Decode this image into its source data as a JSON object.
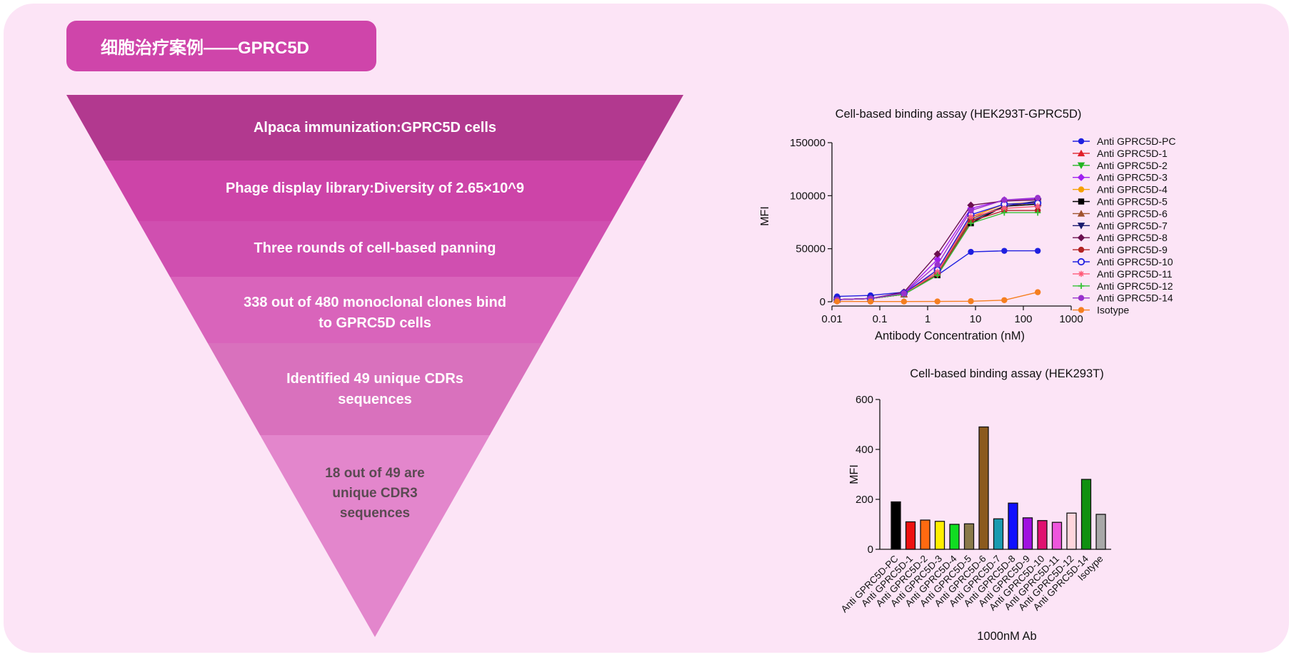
{
  "header": {
    "title": "细胞治疗案例——GPRC5D"
  },
  "colors": {
    "page_bg": "#fce4f6",
    "accent": "#cf45aa",
    "funnel": [
      "#b2398f",
      "#cd44a8",
      "#d04fb0",
      "#d964bb",
      "#d971bd",
      "#e386cc"
    ]
  },
  "funnel": {
    "levels": [
      {
        "lines": [
          "Alpaca immunization:GPRC5D cells"
        ]
      },
      {
        "lines": [
          "Phage display library:Diversity of 2.65×10^9"
        ]
      },
      {
        "lines": [
          "Three rounds of cell-based panning"
        ]
      },
      {
        "lines": [
          "338 out of 480 monoclonal clones bind",
          "to GPRC5D cells"
        ]
      },
      {
        "lines": [
          "Identified 49 unique CDRs",
          "sequences"
        ]
      },
      {
        "lines": [
          "18 out of 49 are",
          "unique CDR3",
          "sequences"
        ]
      }
    ]
  },
  "chart_data": [
    {
      "type": "line",
      "title": "Cell-based binding assay (HEK293T-GPRC5D)",
      "xlabel": "Antibody Concentration (nM)",
      "ylabel": "MFI",
      "x_scale": "log",
      "xlim": [
        0.01,
        1000
      ],
      "ylim": [
        0,
        150000
      ],
      "x_ticks": [
        "0.01",
        "0.1",
        "1",
        "10",
        "100",
        "1000"
      ],
      "y_ticks": [
        "0",
        "50000",
        "100000",
        "150000"
      ],
      "legend_position": "right",
      "x": [
        0.0128,
        0.064,
        0.32,
        1.6,
        8,
        40,
        200
      ],
      "series": [
        {
          "name": "Anti GPRC5D-PC",
          "color": "#1f1fe0",
          "marker": "circle",
          "values": [
            5000,
            6000,
            9000,
            25000,
            47000,
            48000,
            48000
          ]
        },
        {
          "name": "Anti GPRC5D-1",
          "color": "#e0202a",
          "marker": "triangle",
          "values": [
            2000,
            3000,
            7000,
            30000,
            80000,
            92000,
            93000
          ]
        },
        {
          "name": "Anti GPRC5D-2",
          "color": "#22b422",
          "marker": "triangle-down",
          "values": [
            2000,
            3000,
            7000,
            28000,
            78000,
            90000,
            92000
          ]
        },
        {
          "name": "Anti GPRC5D-3",
          "color": "#a020f0",
          "marker": "diamond",
          "values": [
            2000,
            3000,
            8000,
            40000,
            88000,
            96000,
            97000
          ]
        },
        {
          "name": "Anti GPRC5D-4",
          "color": "#f5a000",
          "marker": "circle",
          "values": [
            2000,
            3000,
            7000,
            28000,
            80000,
            92000,
            94000
          ]
        },
        {
          "name": "Anti GPRC5D-5",
          "color": "#000000",
          "marker": "square",
          "values": [
            2000,
            3000,
            7000,
            25000,
            74000,
            90000,
            92000
          ]
        },
        {
          "name": "Anti GPRC5D-6",
          "color": "#a0522d",
          "marker": "triangle",
          "values": [
            2000,
            3000,
            7000,
            28000,
            78000,
            90000,
            94000
          ]
        },
        {
          "name": "Anti GPRC5D-7",
          "color": "#1a1a6e",
          "marker": "triangle-down",
          "values": [
            2000,
            3000,
            7000,
            26000,
            76000,
            90000,
            95000
          ]
        },
        {
          "name": "Anti GPRC5D-8",
          "color": "#6b0f4f",
          "marker": "diamond",
          "values": [
            2000,
            3000,
            9000,
            45000,
            91000,
            95000,
            96000
          ]
        },
        {
          "name": "Anti GPRC5D-9",
          "color": "#b22222",
          "marker": "circle",
          "values": [
            2000,
            3000,
            7000,
            26000,
            76000,
            86000,
            86000
          ]
        },
        {
          "name": "Anti GPRC5D-10",
          "color": "#1f1fe0",
          "marker": "circle-open",
          "values": [
            2000,
            3000,
            8000,
            30000,
            82000,
            92000,
            93000
          ]
        },
        {
          "name": "Anti GPRC5D-11",
          "color": "#ff5a78",
          "marker": "star",
          "values": [
            2000,
            3000,
            7000,
            28000,
            80000,
            88000,
            90000
          ]
        },
        {
          "name": "Anti GPRC5D-12",
          "color": "#36c236",
          "marker": "plus",
          "values": [
            2000,
            3000,
            7000,
            25000,
            74000,
            84000,
            84000
          ]
        },
        {
          "name": "Anti GPRC5D-14",
          "color": "#9932cc",
          "marker": "circle",
          "values": [
            2000,
            3000,
            8000,
            35000,
            86000,
            96000,
            98000
          ]
        },
        {
          "name": "Isotype",
          "color": "#f57f20",
          "marker": "circle",
          "values": [
            300,
            200,
            200,
            300,
            500,
            1500,
            9000
          ]
        }
      ]
    },
    {
      "type": "bar",
      "title": "Cell-based binding assay (HEK293T)",
      "xlabel": "1000nM Ab",
      "ylabel": "MFI",
      "ylim": [
        0,
        600
      ],
      "y_ticks": [
        "0",
        "200",
        "400",
        "600"
      ],
      "categories": [
        "Anti GPRC5D-PC",
        "Anti GPRC5D-1",
        "Anti GPRC5D-2",
        "Anti GPRC5D-3",
        "Anti GPRC5D-4",
        "Anti GPRC5D-5",
        "Anti GPRC5D-6",
        "Anti GPRC5D-7",
        "Anti GPRC5D-8",
        "Anti GPRC5D-9",
        "Anti GPRC5D-10",
        "Anti GPRC5D-11",
        "Anti GPRC5D-12",
        "Anti GPRC5D-14",
        "Isotype"
      ],
      "values": [
        190,
        110,
        117,
        112,
        100,
        102,
        490,
        122,
        185,
        126,
        115,
        108,
        145,
        280,
        140
      ],
      "colors": [
        "#000000",
        "#ee1111",
        "#ff6a10",
        "#ffee00",
        "#11dd22",
        "#8a7a4a",
        "#8b5a1e",
        "#1a9ab0",
        "#1010ff",
        "#a010e0",
        "#e01070",
        "#ee55dd",
        "#ffd6dc",
        "#109010",
        "#a8a8a8"
      ]
    }
  ]
}
